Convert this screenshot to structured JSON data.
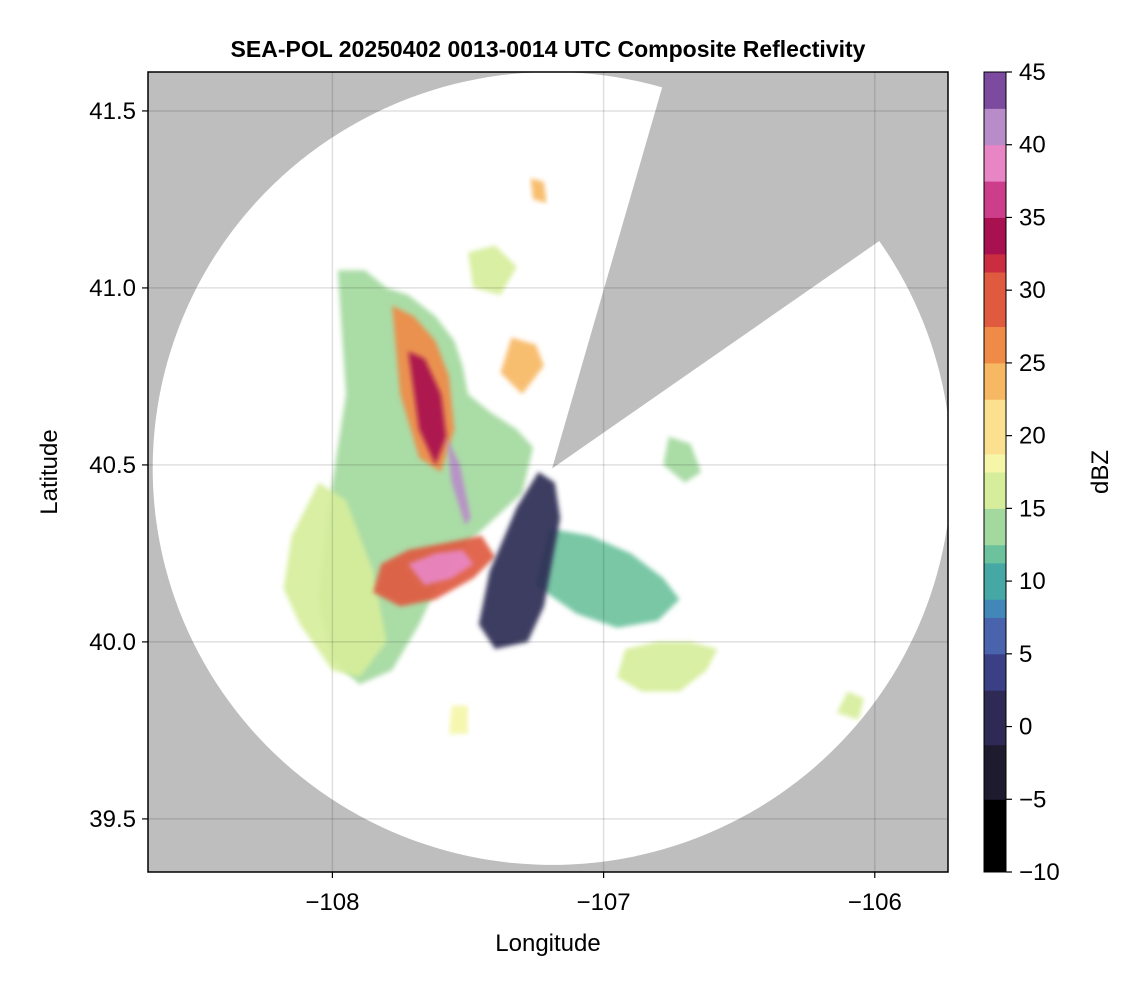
{
  "chart_data": {
    "type": "heatmap",
    "title": "SEA-POL 20250402 0013-0014 UTC Composite Reflectivity",
    "xlabel": "Longitude",
    "ylabel": "Latitude",
    "xlim": [
      -108.68,
      -105.73
    ],
    "ylim": [
      39.35,
      41.61
    ],
    "xticks": [
      -108,
      -107,
      -106
    ],
    "xtick_labels": [
      "−108",
      "−107",
      "−106"
    ],
    "yticks": [
      39.5,
      40.0,
      40.5,
      41.0,
      41.5
    ],
    "ytick_labels": [
      "39.5",
      "40.0",
      "40.5",
      "41.0",
      "41.5"
    ],
    "grid": true,
    "background_color": "#bebebe",
    "radar": {
      "center_lon": -107.19,
      "center_lat": 40.49,
      "range_deg_lat": 1.12,
      "blocked_sectors_deg_from_north": [
        [
          16,
          55
        ]
      ]
    },
    "colorbar": {
      "label": "dBZ",
      "min": -10,
      "max": 45,
      "ticks": [
        -10,
        -5,
        0,
        5,
        10,
        15,
        20,
        25,
        30,
        35,
        40,
        45
      ],
      "tick_labels": [
        "−10",
        "−5",
        "0",
        "5",
        "10",
        "15",
        "20",
        "25",
        "30",
        "35",
        "40",
        "45"
      ],
      "colormap": "Spectral (reversed) extended",
      "colors": [
        "#000000",
        "#1f1b2e",
        "#2e2a55",
        "#3b3f85",
        "#4a63ad",
        "#4287b7",
        "#45a8a5",
        "#6cc29d",
        "#a3d99e",
        "#d6ee9b",
        "#f5f6a8",
        "#fbe08f",
        "#f7b864",
        "#f08a47",
        "#e05a3f",
        "#c92d3f",
        "#a8104f",
        "#cc3d8a",
        "#e885c4",
        "#b88cc9",
        "#7c4a9e",
        "#3c0b5a"
      ],
      "levels": [
        -10,
        -5,
        -1,
        2,
        5,
        7,
        9,
        11,
        13,
        15,
        17,
        19,
        22,
        25,
        28,
        31,
        33,
        35,
        37.5,
        40,
        42.5,
        45
      ]
    },
    "echo_regions": [
      {
        "name": "northwest-band",
        "lon": [
          -107.98,
          -107.88,
          -107.8,
          -107.72,
          -107.62,
          -107.55,
          -107.52,
          -107.5,
          -107.42,
          -107.32,
          -107.26,
          -107.3,
          -107.4,
          -107.5,
          -107.6,
          -107.68,
          -107.78,
          -107.9,
          -108.0,
          -108.05,
          -108.02,
          -107.95
        ],
        "lat": [
          41.05,
          41.05,
          41.0,
          40.98,
          40.92,
          40.85,
          40.78,
          40.7,
          40.65,
          40.6,
          40.55,
          40.42,
          40.35,
          40.28,
          40.18,
          40.05,
          39.92,
          39.88,
          39.95,
          40.12,
          40.35,
          40.7
        ],
        "value": 14
      },
      {
        "name": "west-lobe",
        "lon": [
          -108.05,
          -107.95,
          -107.85,
          -107.8,
          -107.9,
          -108.0,
          -108.12,
          -108.18,
          -108.15
        ],
        "lat": [
          40.45,
          40.4,
          40.2,
          40.0,
          39.9,
          39.92,
          40.05,
          40.15,
          40.3
        ],
        "value": 15
      },
      {
        "name": "core-north",
        "lon": [
          -107.78,
          -107.7,
          -107.62,
          -107.57,
          -107.55,
          -107.6,
          -107.68,
          -107.75
        ],
        "lat": [
          40.95,
          40.92,
          40.85,
          40.75,
          40.6,
          40.48,
          40.52,
          40.7
        ],
        "value": 27
      },
      {
        "name": "core-heavy",
        "lon": [
          -107.72,
          -107.66,
          -107.6,
          -107.58,
          -107.62,
          -107.68
        ],
        "lat": [
          40.82,
          40.8,
          40.7,
          40.58,
          40.5,
          40.6
        ],
        "value": 34
      },
      {
        "name": "core-south",
        "lon": [
          -107.82,
          -107.72,
          -107.58,
          -107.45,
          -107.4,
          -107.48,
          -107.62,
          -107.75,
          -107.85
        ],
        "lat": [
          40.22,
          40.26,
          40.28,
          40.3,
          40.24,
          40.18,
          40.12,
          40.1,
          40.14
        ],
        "value": 29
      },
      {
        "name": "core-south-inner",
        "lon": [
          -107.72,
          -107.62,
          -107.52,
          -107.48,
          -107.56,
          -107.66
        ],
        "lat": [
          40.22,
          40.25,
          40.26,
          40.22,
          40.18,
          40.16
        ],
        "value": 38
      },
      {
        "name": "magenta-streak",
        "lon": [
          -107.58,
          -107.53,
          -107.49,
          -107.51,
          -107.56
        ],
        "lat": [
          40.58,
          40.5,
          40.35,
          40.33,
          40.45
        ],
        "value": 40
      },
      {
        "name": "southeast-sector",
        "lon": [
          -107.2,
          -107.05,
          -106.9,
          -106.78,
          -106.72,
          -106.8,
          -106.95,
          -107.1,
          -107.25
        ],
        "lat": [
          40.32,
          40.3,
          40.25,
          40.18,
          40.12,
          40.06,
          40.04,
          40.08,
          40.16
        ],
        "value": 12
      },
      {
        "name": "southeast-cluster",
        "lon": [
          -106.92,
          -106.8,
          -106.68,
          -106.58,
          -106.62,
          -106.72,
          -106.86,
          -106.95
        ],
        "lat": [
          39.98,
          40.0,
          40.0,
          39.98,
          39.92,
          39.86,
          39.86,
          39.9
        ],
        "value": 15
      },
      {
        "name": "low-ref-plume",
        "lon": [
          -107.24,
          -107.18,
          -107.16,
          -107.22,
          -107.28,
          -107.4,
          -107.46,
          -107.42,
          -107.32
        ],
        "lat": [
          40.48,
          40.45,
          40.35,
          40.1,
          40.0,
          39.98,
          40.05,
          40.2,
          40.38
        ],
        "value": 1
      },
      {
        "name": "north-cell-1",
        "lon": [
          -107.34,
          -107.25,
          -107.22,
          -107.3,
          -107.38
        ],
        "lat": [
          40.86,
          40.84,
          40.78,
          40.7,
          40.76
        ],
        "value": 22
      },
      {
        "name": "north-cell-2",
        "lon": [
          -107.5,
          -107.4,
          -107.32,
          -107.38,
          -107.48
        ],
        "lat": [
          41.1,
          41.12,
          41.06,
          40.98,
          41.0
        ],
        "value": 16
      },
      {
        "name": "north-cell-3",
        "lon": [
          -107.27,
          -107.22,
          -107.21,
          -107.26
        ],
        "lat": [
          41.31,
          41.3,
          41.24,
          41.25
        ],
        "value": 24
      },
      {
        "name": "east-cell",
        "lon": [
          -106.76,
          -106.68,
          -106.64,
          -106.7,
          -106.78
        ],
        "lat": [
          40.58,
          40.56,
          40.48,
          40.45,
          40.5
        ],
        "value": 14
      },
      {
        "name": "south-cell",
        "lon": [
          -107.56,
          -107.5,
          -107.5,
          -107.57
        ],
        "lat": [
          39.82,
          39.82,
          39.74,
          39.74
        ],
        "value": 18
      },
      {
        "name": "far-southeast-cell",
        "lon": [
          -106.1,
          -106.04,
          -106.06,
          -106.14
        ],
        "lat": [
          39.86,
          39.84,
          39.78,
          39.8
        ],
        "value": 16
      }
    ]
  }
}
